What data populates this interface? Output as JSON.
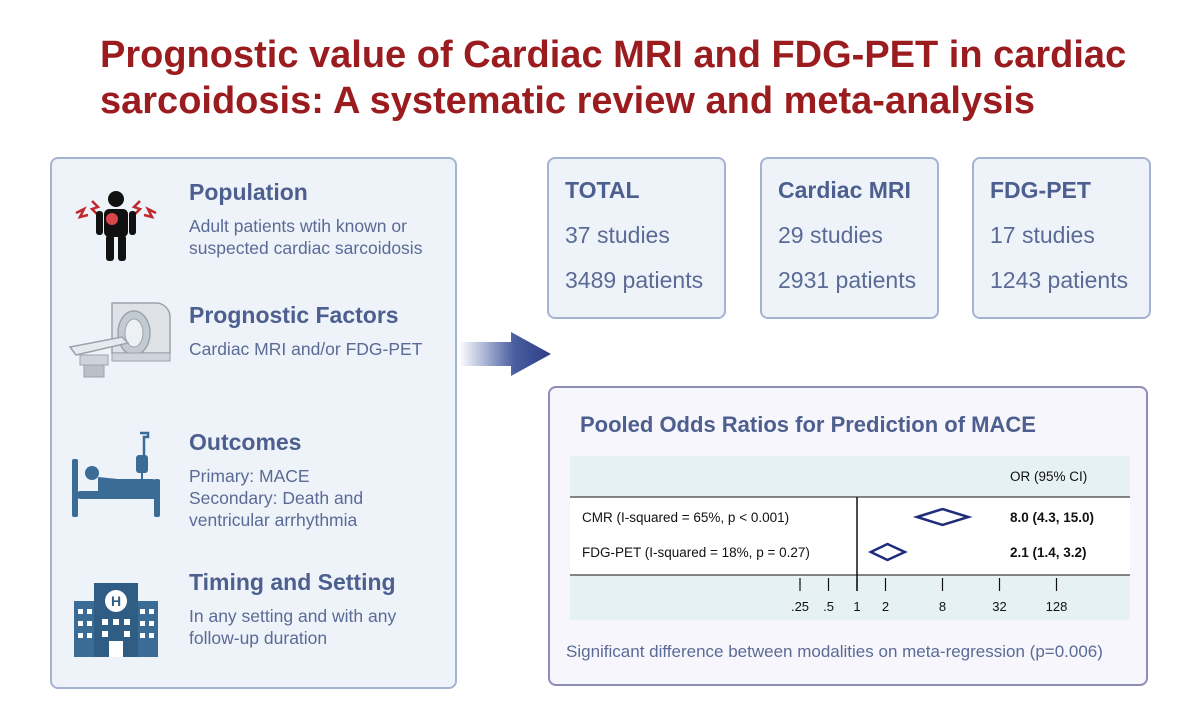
{
  "title": {
    "line1": "Prognostic value of Cardiac MRI and FDG-PET in cardiac",
    "line2": "sarcoidosis: A systematic review and meta-analysis"
  },
  "sections": [
    {
      "heading": "Population",
      "body_lines": [
        "Adult patients wtih known or",
        "suspected cardiac sarcoidosis"
      ],
      "icon": "patient-pain-icon"
    },
    {
      "heading": "Prognostic Factors",
      "body_lines": [
        "Cardiac MRI and/or FDG-PET"
      ],
      "icon": "mri-scanner-icon"
    },
    {
      "heading": "Outcomes",
      "body_lines": [
        "Primary: MACE",
        "Secondary: Death and",
        "ventricular arrhythmia"
      ],
      "icon": "hospital-bed-icon"
    },
    {
      "heading": "Timing and Setting",
      "body_lines": [
        "In any setting and with any",
        "follow-up duration"
      ],
      "icon": "hospital-building-icon"
    }
  ],
  "stats": [
    {
      "title": "TOTAL",
      "studies": "37 studies",
      "patients": "3489 patients"
    },
    {
      "title": "Cardiac MRI",
      "studies": "29 studies",
      "patients": "2931 patients"
    },
    {
      "title": "FDG-PET",
      "studies": "17 studies",
      "patients": "1243 patients"
    }
  ],
  "forest": {
    "title": "Pooled Odds Ratios for Prediction of MACE",
    "column_header": "OR (95% CI)",
    "note": "Significant difference between modalities on meta-regression (p=0.006)"
  },
  "chart_data": {
    "type": "forest",
    "scale": "log",
    "reference_line": 1,
    "ticks": [
      0.25,
      0.5,
      1,
      2,
      8,
      32,
      128
    ],
    "tick_labels": [
      ".25",
      ".5",
      "1",
      "2",
      "8",
      "32",
      "128"
    ],
    "rows": [
      {
        "label": "CMR  (I-squared = 65%, p < 0.001)",
        "estimate": 8.0,
        "ci": [
          4.3,
          15.0
        ],
        "text": "8.0 (4.3, 15.0)"
      },
      {
        "label": "FDG-PET  (I-squared = 18%, p = 0.27)",
        "estimate": 2.1,
        "ci": [
          1.4,
          3.2
        ],
        "text": "2.1 (1.4, 3.2)"
      }
    ]
  },
  "colors": {
    "title": "#9b1c1f",
    "heading": "#4d5f8e",
    "body": "#5a6b95",
    "panel_bg": "#eef2f9",
    "panel_border": "#a5b3d3",
    "diamond": "#1f2d7a",
    "icon_blue": "#3b6c95"
  }
}
